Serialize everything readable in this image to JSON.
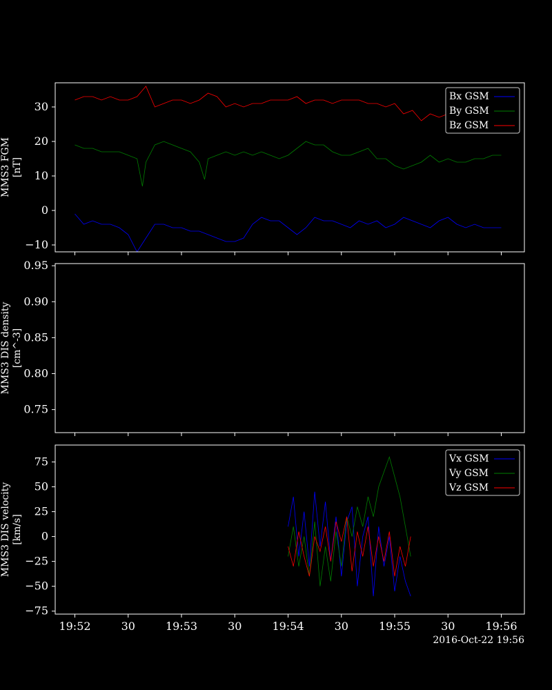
{
  "colors": {
    "background": "#000000",
    "axes": "#ffffff",
    "bx": "#0000ff",
    "by": "#008000",
    "bz": "#ff0000"
  },
  "time_axis": {
    "ticks": [
      "19:52",
      "30",
      "19:53",
      "30",
      "19:54",
      "30",
      "19:55",
      "30",
      "19:56"
    ],
    "footer": "2016-Oct-22 19:56"
  },
  "chart_data": [
    {
      "type": "line",
      "panel": "fgm",
      "ylabel": [
        "MMS3 FGM",
        "[nT]"
      ],
      "ylim": [
        -12,
        37
      ],
      "yticks": [
        -10,
        0,
        10,
        20,
        30
      ],
      "ytick_labels": [
        "−10",
        "0",
        "10",
        "20",
        "30"
      ],
      "legend": "top-right",
      "series": [
        {
          "name": "Bx GSM",
          "color": "#0000ff",
          "x": [
            0,
            5,
            10,
            15,
            20,
            25,
            30,
            35,
            40,
            45,
            50,
            55,
            60,
            65,
            70,
            75,
            80,
            85,
            90,
            95,
            100,
            105,
            110,
            115,
            120,
            125,
            130,
            135,
            140,
            145,
            150,
            155,
            160,
            165,
            170,
            175,
            180,
            185,
            190,
            195,
            200,
            205,
            210,
            215,
            220,
            225,
            230,
            235,
            240
          ],
          "y": [
            -1,
            -4,
            -3,
            -4,
            -4,
            -5,
            -7,
            -12,
            -8,
            -4,
            -4,
            -5,
            -5,
            -6,
            -6,
            -7,
            -8,
            -9,
            -9,
            -8,
            -4,
            -2,
            -3,
            -3,
            -5,
            -7,
            -5,
            -2,
            -3,
            -3,
            -4,
            -5,
            -3,
            -4,
            -3,
            -5,
            -4,
            -2,
            -3,
            -4,
            -5,
            -3,
            -2,
            -4,
            -5,
            -4,
            -5,
            -5,
            -5
          ]
        },
        {
          "name": "By GSM",
          "color": "#008000",
          "x": [
            0,
            5,
            10,
            15,
            20,
            25,
            30,
            35,
            38,
            40,
            45,
            50,
            55,
            60,
            65,
            70,
            73,
            75,
            80,
            85,
            90,
            95,
            100,
            105,
            110,
            115,
            120,
            125,
            130,
            135,
            140,
            145,
            150,
            155,
            160,
            165,
            170,
            175,
            180,
            185,
            190,
            195,
            200,
            205,
            210,
            215,
            220,
            225,
            230,
            235,
            240
          ],
          "y": [
            19,
            18,
            18,
            17,
            17,
            17,
            16,
            15,
            7,
            14,
            19,
            20,
            19,
            18,
            17,
            14,
            9,
            15,
            16,
            17,
            16,
            17,
            16,
            17,
            16,
            15,
            16,
            18,
            20,
            19,
            19,
            17,
            16,
            16,
            17,
            18,
            15,
            15,
            13,
            12,
            13,
            14,
            16,
            14,
            15,
            14,
            14,
            15,
            15,
            16,
            16
          ]
        },
        {
          "name": "Bz GSM",
          "color": "#ff0000",
          "x": [
            0,
            5,
            10,
            15,
            20,
            25,
            30,
            35,
            40,
            45,
            50,
            55,
            60,
            65,
            70,
            75,
            80,
            85,
            90,
            95,
            100,
            105,
            110,
            115,
            120,
            125,
            130,
            135,
            140,
            145,
            150,
            155,
            160,
            165,
            170,
            175,
            180,
            185,
            190,
            195,
            200,
            205,
            210,
            215,
            220,
            225,
            230,
            235,
            240
          ],
          "y": [
            32,
            33,
            33,
            32,
            33,
            32,
            32,
            33,
            36,
            30,
            31,
            32,
            32,
            31,
            32,
            34,
            33,
            30,
            31,
            30,
            31,
            31,
            32,
            32,
            32,
            33,
            31,
            32,
            32,
            31,
            32,
            32,
            32,
            31,
            31,
            30,
            31,
            28,
            29,
            26,
            28,
            27,
            28,
            27,
            26,
            26,
            26,
            27,
            28
          ]
        }
      ]
    },
    {
      "type": "line",
      "panel": "dis_density",
      "ylabel": [
        "MMS3 DIS density",
        "[cm^-3]"
      ],
      "ylim": [
        0.718,
        0.953
      ],
      "yticks": [
        0.75,
        0.8,
        0.85,
        0.9,
        0.95
      ],
      "ytick_labels": [
        "0.75",
        "0.80",
        "0.85",
        "0.90",
        "0.95"
      ],
      "series": []
    },
    {
      "type": "line",
      "panel": "dis_velocity",
      "ylabel": [
        "MMS3 DIS velocity",
        "[km/s]"
      ],
      "ylim": [
        -78,
        92
      ],
      "yticks": [
        -75,
        -50,
        -25,
        0,
        25,
        50,
        75
      ],
      "ytick_labels": [
        "−75",
        "−50",
        "−25",
        "0",
        "25",
        "50",
        "75"
      ],
      "legend": "top-right",
      "series": [
        {
          "name": "Vx GSM",
          "color": "#0000ff",
          "x": [
            120,
            123,
            126,
            129,
            132,
            135,
            138,
            141,
            144,
            147,
            150,
            153,
            156,
            159,
            162,
            165,
            168,
            171,
            174,
            177,
            180,
            183,
            186,
            189
          ],
          "y": [
            10,
            40,
            -20,
            25,
            -30,
            45,
            -10,
            35,
            -25,
            20,
            -40,
            15,
            30,
            -50,
            0,
            20,
            -60,
            10,
            -30,
            0,
            -55,
            -20,
            -45,
            -60
          ]
        },
        {
          "name": "Vy GSM",
          "color": "#008000",
          "x": [
            120,
            123,
            126,
            129,
            132,
            135,
            138,
            141,
            144,
            147,
            150,
            153,
            156,
            159,
            162,
            165,
            168,
            171,
            174,
            177,
            180,
            183,
            186,
            189
          ],
          "y": [
            -20,
            10,
            -30,
            0,
            -40,
            15,
            -50,
            -10,
            -45,
            5,
            -30,
            20,
            0,
            30,
            10,
            40,
            20,
            50,
            65,
            80,
            60,
            40,
            10,
            -20
          ]
        },
        {
          "name": "Vz GSM",
          "color": "#ff0000",
          "x": [
            120,
            123,
            126,
            129,
            132,
            135,
            138,
            141,
            144,
            147,
            150,
            153,
            156,
            159,
            162,
            165,
            168,
            171,
            174,
            177,
            180,
            183,
            186,
            189
          ],
          "y": [
            -10,
            -30,
            5,
            -20,
            -40,
            0,
            -15,
            10,
            -25,
            15,
            -5,
            20,
            -35,
            5,
            -20,
            10,
            -30,
            0,
            -25,
            5,
            -40,
            -10,
            -30,
            0
          ]
        }
      ]
    }
  ]
}
